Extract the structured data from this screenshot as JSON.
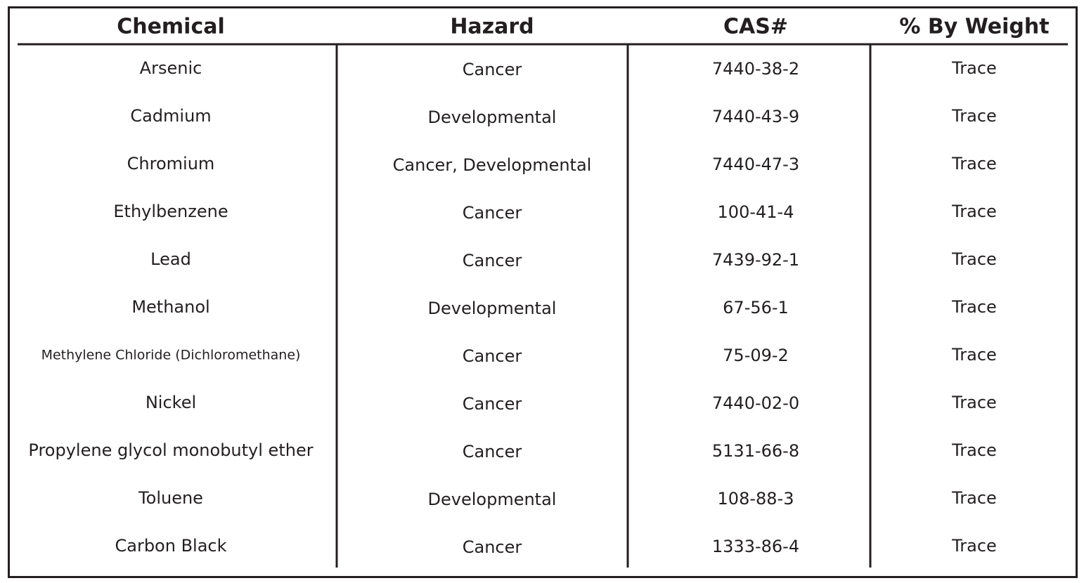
{
  "table": {
    "columns": [
      "Chemical",
      "Hazard",
      "CAS#",
      "% By Weight"
    ],
    "rows": [
      [
        "Arsenic",
        "Cancer",
        "7440-38-2",
        "Trace"
      ],
      [
        "Cadmium",
        "Developmental",
        "7440-43-9",
        "Trace"
      ],
      [
        "Chromium",
        "Cancer, Developmental",
        "7440-47-3",
        "Trace"
      ],
      [
        "Ethylbenzene",
        "Cancer",
        "100-41-4",
        "Trace"
      ],
      [
        "Lead",
        "Cancer",
        "7439-92-1",
        "Trace"
      ],
      [
        "Methanol",
        "Developmental",
        "67-56-1",
        "Trace"
      ],
      [
        "Methylene Chloride (Dichloromethane)",
        "Cancer",
        "75-09-2",
        "Trace"
      ],
      [
        "Nickel",
        "Cancer",
        "7440-02-0",
        "Trace"
      ],
      [
        "Propylene glycol monobutyl ether",
        "Cancer",
        "5131-66-8",
        "Trace"
      ],
      [
        "Toluene",
        "Developmental",
        "108-88-3",
        "Trace"
      ],
      [
        "Carbon Black",
        "Cancer",
        "1333-86-4",
        "Trace"
      ]
    ]
  }
}
